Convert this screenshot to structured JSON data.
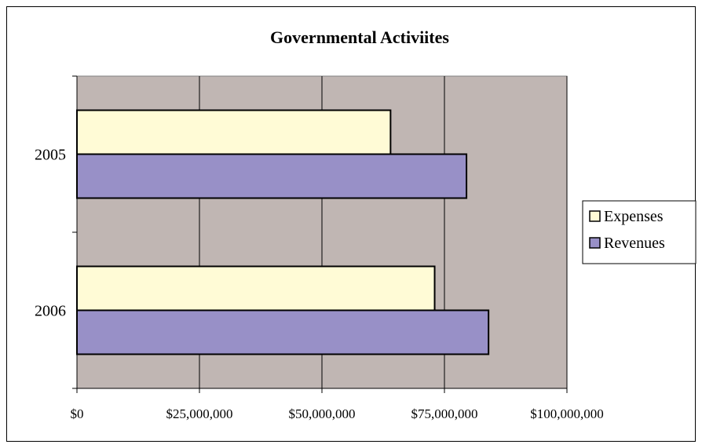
{
  "chart_data": {
    "type": "bar",
    "orientation": "horizontal",
    "title": "Governmental Activiites",
    "xlabel": "",
    "ylabel": "",
    "categories": [
      "2005",
      "2006"
    ],
    "series": [
      {
        "name": "Expenses",
        "values": [
          64000000,
          73000000
        ]
      },
      {
        "name": "Revenues",
        "values": [
          79500000,
          84000000
        ]
      }
    ],
    "xlim": [
      0,
      100000000
    ],
    "xticks": [
      0,
      25000000,
      50000000,
      75000000,
      100000000
    ],
    "xtick_labels": [
      "$0",
      "$25,000,000",
      "$50,000,000",
      "$75,000,000",
      "$100,000,000"
    ],
    "grid": "vertical",
    "legend": "right",
    "colors": {
      "plot_bg": "#c0b6b3",
      "Expenses": "#fffbd6",
      "Revenues": "#9890c7",
      "border": "#000000"
    }
  }
}
